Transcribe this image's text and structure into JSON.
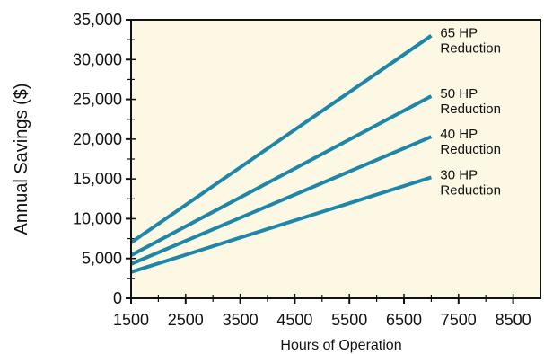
{
  "chart_data": {
    "type": "line",
    "title": "",
    "xlabel": "Hours of Operation",
    "ylabel": "Annual Savings ($)",
    "xlim": [
      1500,
      9000
    ],
    "ylim": [
      0,
      35000
    ],
    "x_ticks": [
      "1500",
      "2500",
      "3500",
      "4500",
      "5500",
      "6500",
      "7500",
      "8500"
    ],
    "y_ticks": [
      "0",
      "5,000",
      "10,000",
      "15,000",
      "20,000",
      "25,000",
      "30,000",
      "35,000"
    ],
    "grid": false,
    "series": [
      {
        "name": "65 HP Reduction",
        "label_lines": [
          "65 HP",
          "Reduction"
        ],
        "x": [
          1500,
          7000
        ],
        "y": [
          7000,
          33000
        ]
      },
      {
        "name": "50 HP Reduction",
        "label_lines": [
          "50 HP",
          "Reduction"
        ],
        "x": [
          1500,
          7000
        ],
        "y": [
          5400,
          25400
        ]
      },
      {
        "name": "40 HP Reduction",
        "label_lines": [
          "40 HP",
          "Reduction"
        ],
        "x": [
          1500,
          7000
        ],
        "y": [
          4300,
          20300
        ]
      },
      {
        "name": "30 HP Reduction",
        "label_lines": [
          "30 HP",
          "Reduction"
        ],
        "x": [
          1500,
          7000
        ],
        "y": [
          3300,
          15200
        ]
      }
    ],
    "colors": {
      "line": "#1e87a8",
      "plot_bg": "#fcf8e3",
      "axis": "#111111"
    }
  }
}
